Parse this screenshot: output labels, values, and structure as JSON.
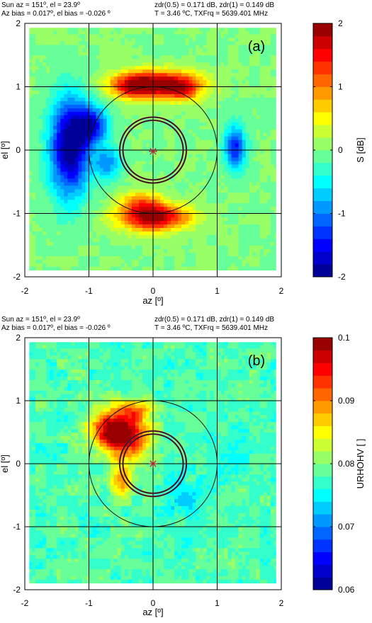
{
  "chart_data": [
    {
      "type": "heatmap",
      "panel_label": "(a)",
      "info": {
        "sun_position": "Sun az = 151º, el = 23.9º",
        "bias": "Az bias = 0.017º, el bias = -0.026 º",
        "zdr": "zdr(0.5) = 0.171 dB, zdr(1) = 0.149 dB",
        "temp_freq": "T = 3.46 ºC, TXFrq = 5639.401 MHz"
      },
      "xlabel": "az [º]",
      "ylabel": "el [º]",
      "xlim": [
        -2,
        2
      ],
      "ylim": [
        -2,
        2
      ],
      "xticks": [
        "-2",
        "-1",
        "0",
        "1",
        "2"
      ],
      "yticks": [
        "2",
        "1",
        "0",
        "-1",
        "-2"
      ],
      "grid": true,
      "colorbar": {
        "label": "S [dB]",
        "limits": [
          -2,
          2
        ],
        "ticks": [
          "2",
          "1",
          "0",
          "-1",
          "-2"
        ],
        "colormap": "jet"
      },
      "background_value": 0,
      "features": [
        {
          "x": 0.05,
          "y": 1.05,
          "sx": 0.45,
          "sy": 0.15,
          "v": 2.0
        },
        {
          "x": -0.3,
          "y": 1.0,
          "sx": 0.2,
          "sy": 0.13,
          "v": 0.8
        },
        {
          "x": 0.45,
          "y": 0.95,
          "sx": 0.2,
          "sy": 0.12,
          "v": 0.8
        },
        {
          "x": 0.0,
          "y": -1.05,
          "sx": 0.38,
          "sy": 0.15,
          "v": 2.0
        },
        {
          "x": -0.2,
          "y": -0.8,
          "sx": 0.22,
          "sy": 0.12,
          "v": 0.8
        },
        {
          "x": -1.3,
          "y": 0.05,
          "sx": 0.22,
          "sy": 0.55,
          "v": -2.0
        },
        {
          "x": -0.95,
          "y": 0.4,
          "sx": 0.18,
          "sy": 0.22,
          "v": -1.4
        },
        {
          "x": -0.7,
          "y": -0.2,
          "sx": 0.15,
          "sy": 0.18,
          "v": -0.9
        },
        {
          "x": 1.28,
          "y": 0.05,
          "sx": 0.12,
          "sy": 0.25,
          "v": -1.4
        }
      ],
      "circles": [
        {
          "x": 0,
          "y": 0,
          "r": 1.0
        },
        {
          "x": 0,
          "y": 0,
          "r": 0.52
        },
        {
          "x": 0,
          "y": 0,
          "r": 0.47
        }
      ],
      "marker": {
        "x": 0,
        "y": -0.02,
        "symbol": "*"
      }
    },
    {
      "type": "heatmap",
      "panel_label": "(b)",
      "info": {
        "sun_position": "Sun az = 151º, el = 23.9º",
        "bias": "Az bias = 0.017º, el bias = -0.026 º",
        "zdr": "zdr(0.5) = 0.171 dB, zdr(1) = 0.149 dB",
        "temp_freq": "T = 3.46 ºC, TXFrq = 5639.401 MHz"
      },
      "xlabel": "az [º]",
      "ylabel": "el [º]",
      "xlim": [
        -2,
        2
      ],
      "ylim": [
        -2,
        2
      ],
      "xticks": [
        "-2",
        "-1",
        "0",
        "1",
        "2"
      ],
      "yticks": [
        "2",
        "1",
        "0",
        "-1",
        "-2"
      ],
      "grid": true,
      "colorbar": {
        "label": "URHOHV [ ]",
        "limits": [
          0.06,
          0.1
        ],
        "ticks": [
          "0.1",
          "0.09",
          "0.08",
          "0.07",
          "0.06"
        ],
        "colormap": "jet"
      },
      "background_value": 0.078,
      "features": [
        {
          "x": -0.6,
          "y": 0.55,
          "sx": 0.25,
          "sy": 0.22,
          "v": 0.1
        },
        {
          "x": -0.35,
          "y": 0.35,
          "sx": 0.25,
          "sy": 0.2,
          "v": 0.09
        },
        {
          "x": -0.5,
          "y": -0.25,
          "sx": 0.13,
          "sy": 0.2,
          "v": 0.088
        },
        {
          "x": -0.25,
          "y": 0.85,
          "sx": 0.18,
          "sy": 0.12,
          "v": 0.088
        },
        {
          "x": 0.5,
          "y": -0.55,
          "sx": 0.2,
          "sy": 0.2,
          "v": 0.073
        },
        {
          "x": 1.2,
          "y": 0.2,
          "sx": 0.3,
          "sy": 0.3,
          "v": 0.076
        }
      ],
      "circles": [
        {
          "x": 0,
          "y": 0,
          "r": 1.0
        },
        {
          "x": 0,
          "y": 0,
          "r": 0.52
        },
        {
          "x": 0,
          "y": 0,
          "r": 0.47
        }
      ],
      "marker": {
        "x": 0,
        "y": 0,
        "symbol": "*"
      }
    }
  ]
}
